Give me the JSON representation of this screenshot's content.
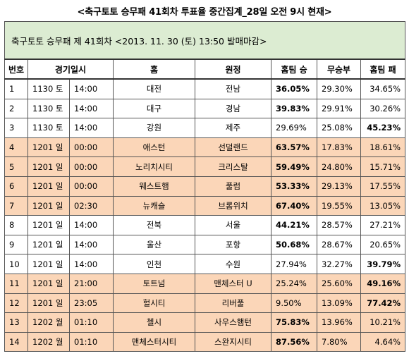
{
  "page_title": "<축구토토 승무패 41회차 투표율 중간집계_28일 오전 9시 현재>",
  "table_subtitle": "축구토토 승무패 제 41회차 <2013. 11. 30 (토) 13:50 발매마감>",
  "headers": {
    "no": "번호",
    "date": "경기일시",
    "home": "홈",
    "away": "원정",
    "home_win": "홈팀 승",
    "draw": "무승부",
    "home_loss": "홈팀 패"
  },
  "rows": [
    {
      "no": "1",
      "date": "1130 토",
      "time": "14:00",
      "home": "대전",
      "away": "전남",
      "win": "36.05%",
      "draw": "29.30%",
      "loss": "34.65%",
      "bold": "win",
      "highlight": false
    },
    {
      "no": "2",
      "date": "1130 토",
      "time": "14:00",
      "home": "대구",
      "away": "경남",
      "win": "39.83%",
      "draw": "29.91%",
      "loss": "30.26%",
      "bold": "win",
      "highlight": false
    },
    {
      "no": "3",
      "date": "1130 토",
      "time": "14:00",
      "home": "강원",
      "away": "제주",
      "win": "29.69%",
      "draw": "25.08%",
      "loss": "45.23%",
      "bold": "loss",
      "highlight": false
    },
    {
      "no": "4",
      "date": "1201 일",
      "time": "00:00",
      "home": "애스턴",
      "away": "선덜랜드",
      "win": "63.57%",
      "draw": "17.83%",
      "loss": "18.61%",
      "bold": "win",
      "highlight": true
    },
    {
      "no": "5",
      "date": "1201 일",
      "time": "00:00",
      "home": "노리치시티",
      "away": "크리스탈",
      "win": "59.49%",
      "draw": "24.80%",
      "loss": "15.71%",
      "bold": "win",
      "highlight": true
    },
    {
      "no": "6",
      "date": "1201 일",
      "time": "00:00",
      "home": "웨스트햄",
      "away": "풀럼",
      "win": "53.33%",
      "draw": "29.13%",
      "loss": "17.55%",
      "bold": "win",
      "highlight": true
    },
    {
      "no": "7",
      "date": "1201 일",
      "time": "02:30",
      "home": "뉴캐슬",
      "away": "브롬위치",
      "win": "67.40%",
      "draw": "19.55%",
      "loss": "13.05%",
      "bold": "win",
      "highlight": true
    },
    {
      "no": "8",
      "date": "1201 일",
      "time": "14:00",
      "home": "전북",
      "away": "서울",
      "win": "44.21%",
      "draw": "28.57%",
      "loss": "27.21%",
      "bold": "win",
      "highlight": false
    },
    {
      "no": "9",
      "date": "1201 일",
      "time": "14:00",
      "home": "울산",
      "away": "포항",
      "win": "50.68%",
      "draw": "28.67%",
      "loss": "20.65%",
      "bold": "win",
      "highlight": false
    },
    {
      "no": "10",
      "date": "1201 일",
      "time": "14:00",
      "home": "인천",
      "away": "수원",
      "win": "27.94%",
      "draw": "32.27%",
      "loss": "39.79%",
      "bold": "loss",
      "highlight": false
    },
    {
      "no": "11",
      "date": "1201 일",
      "time": "21:00",
      "home": "토트넘",
      "away": "맨체스터 U",
      "win": "25.24%",
      "draw": "25.60%",
      "loss": "49.16%",
      "bold": "loss",
      "highlight": true
    },
    {
      "no": "12",
      "date": "1201 일",
      "time": "23:05",
      "home": "헐시티",
      "away": "리버풀",
      "win": "9.50%",
      "draw": "13.09%",
      "loss": "77.42%",
      "bold": "loss",
      "highlight": true
    },
    {
      "no": "13",
      "date": "1202 월",
      "time": "01:10",
      "home": "첼시",
      "away": "사우스햄턴",
      "win": "75.83%",
      "draw": "13.96%",
      "loss": "10.21%",
      "bold": "win",
      "highlight": true
    },
    {
      "no": "14",
      "date": "1202 월",
      "time": "01:10",
      "home": "맨체스터시티",
      "away": "스완지시티",
      "win": "87.56%",
      "draw": "7.80%",
      "loss": "4.64%",
      "bold": "win",
      "highlight": true
    }
  ],
  "colors": {
    "subtitle_bg": "#dcecd2",
    "highlight_row_bg": "#fbd6b8",
    "border": "#555555"
  }
}
